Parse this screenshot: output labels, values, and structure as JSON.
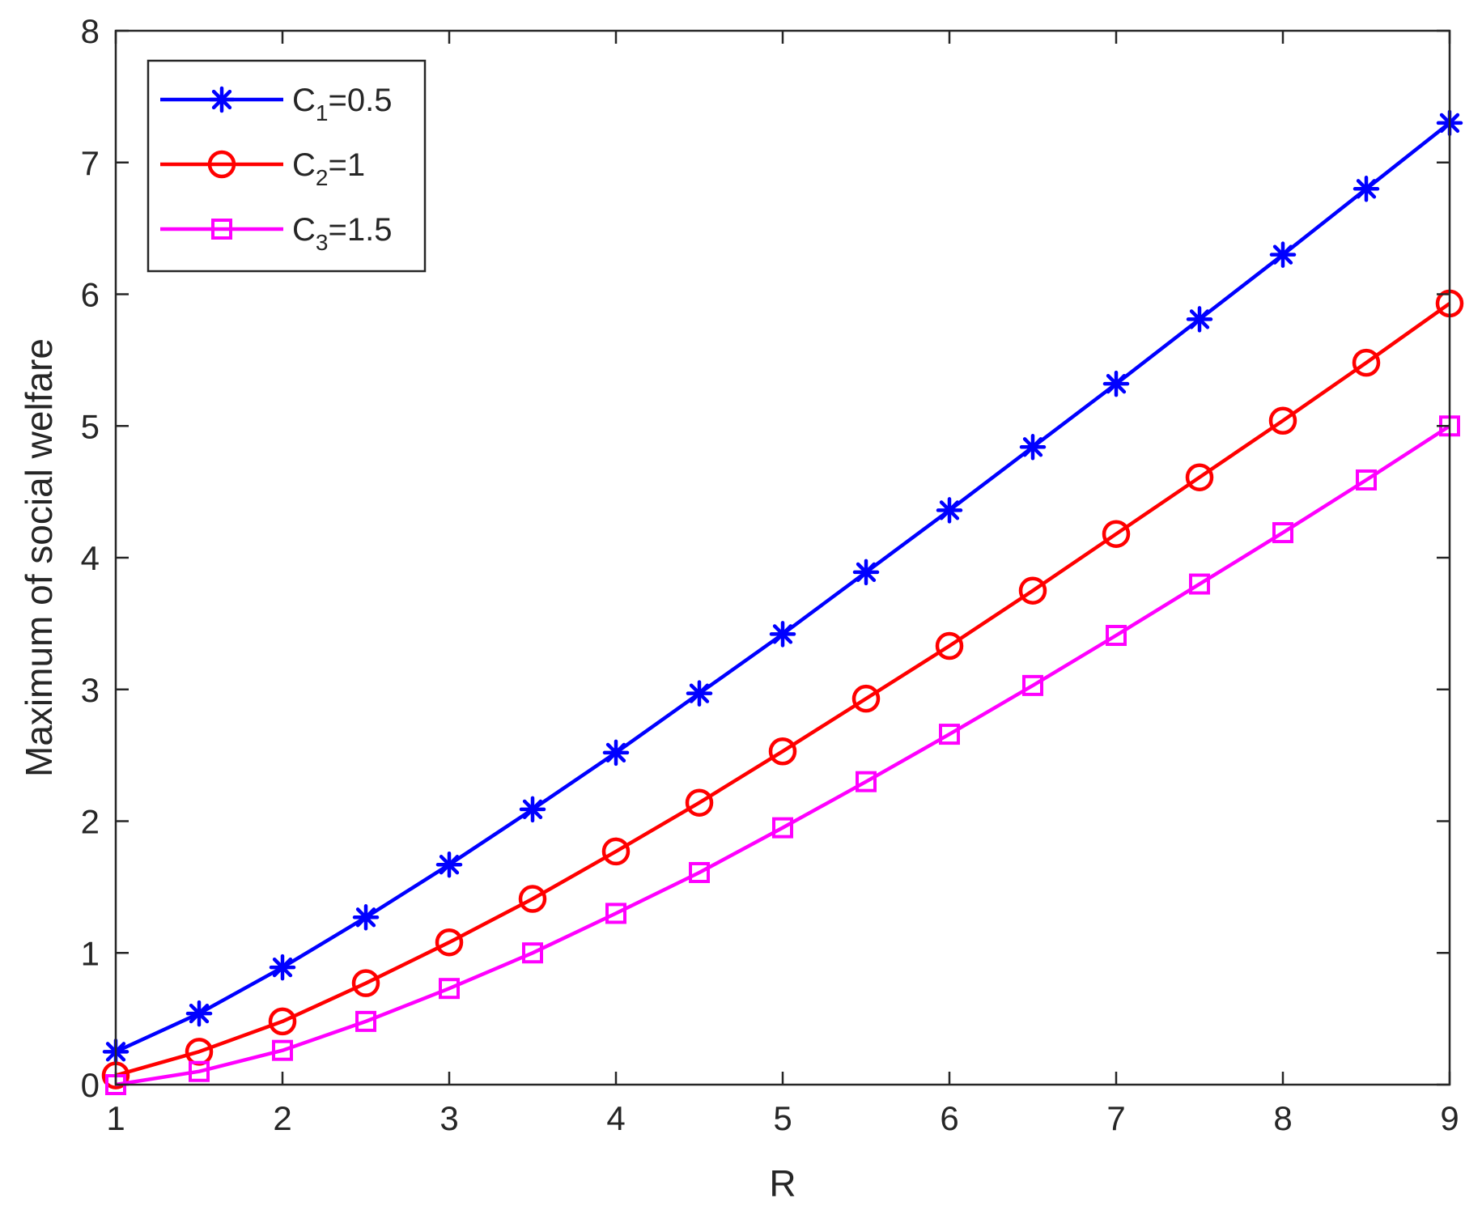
{
  "chart_data": {
    "type": "line",
    "title": "",
    "xlabel": "R",
    "ylabel": "Maximum of social welfare",
    "xlim": [
      1,
      9
    ],
    "ylim": [
      0,
      8
    ],
    "xticks": [
      1,
      2,
      3,
      4,
      5,
      6,
      7,
      8,
      9
    ],
    "yticks": [
      0,
      1,
      2,
      3,
      4,
      5,
      6,
      7,
      8
    ],
    "grid": false,
    "box": true,
    "legend_position": "top-left",
    "x": [
      1,
      1.5,
      2,
      2.5,
      3,
      3.5,
      4,
      4.5,
      5,
      5.5,
      6,
      6.5,
      7,
      7.5,
      8,
      8.5,
      9
    ],
    "series": [
      {
        "name": "C1=0.5",
        "label_main": "C",
        "label_sub": "1",
        "label_rest": "=0.5",
        "color": "#0000FF",
        "marker": "asterisk",
        "values": [
          0.25,
          0.54,
          0.89,
          1.27,
          1.67,
          2.09,
          2.52,
          2.97,
          3.42,
          3.89,
          4.36,
          4.84,
          5.32,
          5.81,
          6.3,
          6.8,
          7.3
        ]
      },
      {
        "name": "C2=1",
        "label_main": "C",
        "label_sub": "2",
        "label_rest": "=1",
        "color": "#FF0000",
        "marker": "circle",
        "values": [
          0.07,
          0.25,
          0.48,
          0.77,
          1.08,
          1.41,
          1.77,
          2.14,
          2.53,
          2.93,
          3.33,
          3.75,
          4.18,
          4.61,
          5.04,
          5.48,
          5.93
        ]
      },
      {
        "name": "C3=1.5",
        "label_main": "C",
        "label_sub": "3",
        "label_rest": "=1.5",
        "color": "#FF00FF",
        "marker": "square",
        "values": [
          0.0,
          0.1,
          0.26,
          0.48,
          0.73,
          1.0,
          1.3,
          1.61,
          1.95,
          2.3,
          2.66,
          3.03,
          3.41,
          3.8,
          4.19,
          4.59,
          5.0
        ]
      }
    ]
  }
}
